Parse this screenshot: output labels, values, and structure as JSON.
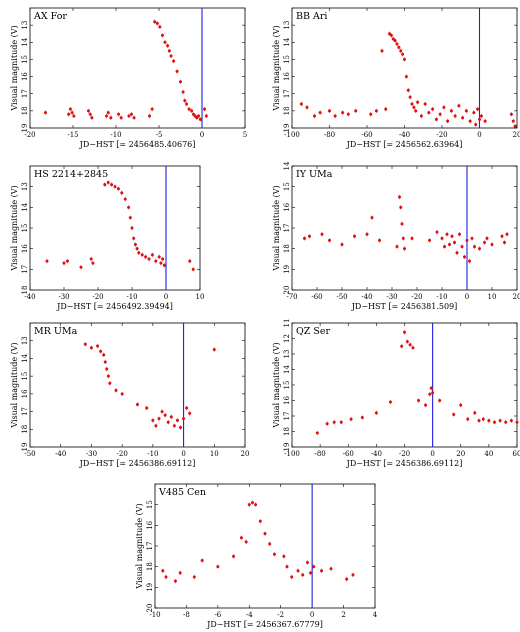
{
  "chart_data": [
    {
      "type": "scatter",
      "title": "AX For",
      "xlabel": "JD−HST [= 2456485.40676]",
      "ylabel": "Visual magnitude (V)",
      "xlim": [
        -20,
        5
      ],
      "ylim": [
        19,
        12
      ],
      "xticks": [
        -20,
        -15,
        -10,
        -5,
        0,
        5
      ],
      "yticks": [
        13,
        14,
        15,
        16,
        17,
        18,
        19
      ],
      "vline": 0,
      "points": [
        [
          -18.2,
          18.1
        ],
        [
          -15.5,
          18.2
        ],
        [
          -15.3,
          17.9
        ],
        [
          -15.1,
          18.1
        ],
        [
          -14.9,
          18.3
        ],
        [
          -13.2,
          18.0
        ],
        [
          -13.0,
          18.2
        ],
        [
          -12.8,
          18.4
        ],
        [
          -11.1,
          18.3
        ],
        [
          -10.9,
          18.1
        ],
        [
          -10.6,
          18.4
        ],
        [
          -9.7,
          18.2
        ],
        [
          -9.4,
          18.4
        ],
        [
          -8.5,
          18.3
        ],
        [
          -8.2,
          18.2
        ],
        [
          -7.9,
          18.4
        ],
        [
          -6.1,
          18.3
        ],
        [
          -5.8,
          17.9
        ],
        [
          -5.5,
          12.8
        ],
        [
          -5.2,
          12.9
        ],
        [
          -4.9,
          13.1
        ],
        [
          -4.6,
          13.6
        ],
        [
          -4.3,
          14.0
        ],
        [
          -4.0,
          14.2
        ],
        [
          -3.8,
          14.5
        ],
        [
          -3.6,
          14.8
        ],
        [
          -3.3,
          15.1
        ],
        [
          -2.9,
          15.7
        ],
        [
          -2.5,
          16.3
        ],
        [
          -2.2,
          16.9
        ],
        [
          -2.0,
          17.4
        ],
        [
          -1.8,
          17.6
        ],
        [
          -1.5,
          17.9
        ],
        [
          -1.2,
          18.0
        ],
        [
          -1.0,
          18.2
        ],
        [
          -0.8,
          18.3
        ],
        [
          -0.6,
          18.4
        ],
        [
          -0.4,
          18.3
        ],
        [
          -0.2,
          18.5
        ],
        [
          0.3,
          17.9
        ],
        [
          0.5,
          18.3
        ]
      ]
    },
    {
      "type": "scatter",
      "title": "BB Ari",
      "xlabel": "JD−HST [= 2456562.63964]",
      "ylabel": "Visual magnitude (V)",
      "xlim": [
        -100,
        20
      ],
      "ylim": [
        19,
        12
      ],
      "xticks": [
        -100,
        -80,
        -60,
        -40,
        -20,
        0,
        20
      ],
      "yticks": [
        13,
        14,
        15,
        16,
        17,
        18,
        19
      ],
      "vline": 0,
      "points": [
        [
          -95,
          17.6
        ],
        [
          -92,
          17.8
        ],
        [
          -88,
          18.3
        ],
        [
          -85,
          18.1
        ],
        [
          -80,
          18.0
        ],
        [
          -77,
          18.3
        ],
        [
          -73,
          18.1
        ],
        [
          -70,
          18.2
        ],
        [
          -66,
          18.0
        ],
        [
          -58,
          18.2
        ],
        [
          -55,
          18.0
        ],
        [
          -52,
          14.5
        ],
        [
          -50,
          17.9
        ],
        [
          -48,
          13.5
        ],
        [
          -47,
          13.6
        ],
        [
          -46,
          13.8
        ],
        [
          -45,
          13.9
        ],
        [
          -44,
          14.1
        ],
        [
          -43,
          14.3
        ],
        [
          -42,
          14.5
        ],
        [
          -41,
          14.7
        ],
        [
          -40,
          15.0
        ],
        [
          -39,
          16.0
        ],
        [
          -38,
          16.8
        ],
        [
          -37,
          17.2
        ],
        [
          -36,
          17.6
        ],
        [
          -35,
          17.8
        ],
        [
          -34,
          18.0
        ],
        [
          -33,
          17.5
        ],
        [
          -31,
          18.3
        ],
        [
          -29,
          17.6
        ],
        [
          -27,
          18.1
        ],
        [
          -25,
          17.9
        ],
        [
          -23,
          18.5
        ],
        [
          -21,
          18.2
        ],
        [
          -19,
          17.8
        ],
        [
          -17,
          18.6
        ],
        [
          -15,
          18.0
        ],
        [
          -13,
          18.3
        ],
        [
          -11,
          17.7
        ],
        [
          -9,
          18.4
        ],
        [
          -7,
          18.0
        ],
        [
          -5,
          18.6
        ],
        [
          -3,
          18.1
        ],
        [
          -2,
          18.8
        ],
        [
          -1,
          17.9
        ],
        [
          0,
          18.5
        ],
        [
          1,
          18.3
        ],
        [
          3,
          18.6
        ],
        [
          17,
          18.2
        ],
        [
          18,
          18.6
        ],
        [
          19,
          18.9
        ]
      ]
    },
    {
      "type": "scatter",
      "title": "HS 2214+2845",
      "xlabel": "JD−HST [= 2456492.39494]",
      "ylabel": "Visual magnitude (V)",
      "xlim": [
        -40,
        10
      ],
      "ylim": [
        18,
        12
      ],
      "xticks": [
        -40,
        -30,
        -20,
        -10,
        0,
        10
      ],
      "yticks": [
        13,
        14,
        15,
        16,
        17,
        18
      ],
      "vline": 0,
      "points": [
        [
          -35,
          16.6
        ],
        [
          -30,
          16.7
        ],
        [
          -29,
          16.6
        ],
        [
          -25,
          16.9
        ],
        [
          -22,
          16.5
        ],
        [
          -21.5,
          16.7
        ],
        [
          -18,
          12.9
        ],
        [
          -17,
          12.8
        ],
        [
          -16,
          12.9
        ],
        [
          -15,
          13.0
        ],
        [
          -14,
          13.1
        ],
        [
          -13,
          13.3
        ],
        [
          -12,
          13.6
        ],
        [
          -11,
          14.0
        ],
        [
          -10.5,
          14.5
        ],
        [
          -10,
          15.0
        ],
        [
          -9.5,
          15.5
        ],
        [
          -9,
          15.8
        ],
        [
          -8.5,
          16.0
        ],
        [
          -8,
          16.2
        ],
        [
          -7,
          16.3
        ],
        [
          -6,
          16.4
        ],
        [
          -5,
          16.5
        ],
        [
          -4,
          16.3
        ],
        [
          -3,
          16.6
        ],
        [
          -2,
          16.4
        ],
        [
          -1.5,
          16.7
        ],
        [
          -1,
          16.5
        ],
        [
          -0.5,
          16.8
        ],
        [
          7,
          16.6
        ],
        [
          8,
          17.0
        ]
      ]
    },
    {
      "type": "scatter",
      "title": "IY UMa",
      "xlabel": "JD−HST [= 2456381.509]",
      "ylabel": "Visual magnitude (V)",
      "xlim": [
        -70,
        20
      ],
      "ylim": [
        20,
        14
      ],
      "xticks": [
        -70,
        -60,
        -50,
        -40,
        -30,
        -20,
        -10,
        0,
        10,
        20
      ],
      "yticks": [
        14,
        15,
        16,
        17,
        18,
        19,
        20
      ],
      "vline": 0,
      "points": [
        [
          -65,
          17.5
        ],
        [
          -63,
          17.4
        ],
        [
          -58,
          17.3
        ],
        [
          -55,
          17.6
        ],
        [
          -50,
          17.8
        ],
        [
          -45,
          17.4
        ],
        [
          -40,
          17.3
        ],
        [
          -38,
          16.5
        ],
        [
          -35,
          17.6
        ],
        [
          -28,
          17.9
        ],
        [
          -27,
          15.5
        ],
        [
          -26.5,
          16.0
        ],
        [
          -26,
          16.8
        ],
        [
          -25.5,
          17.5
        ],
        [
          -25,
          18.0
        ],
        [
          -22,
          17.5
        ],
        [
          -15,
          17.6
        ],
        [
          -12,
          17.2
        ],
        [
          -10,
          17.5
        ],
        [
          -9,
          17.9
        ],
        [
          -8,
          17.3
        ],
        [
          -7,
          17.8
        ],
        [
          -6,
          17.4
        ],
        [
          -5,
          17.7
        ],
        [
          -4,
          18.2
        ],
        [
          -3,
          17.3
        ],
        [
          -2,
          17.9
        ],
        [
          -1,
          18.4
        ],
        [
          0,
          17.6
        ],
        [
          1,
          18.6
        ],
        [
          2,
          17.5
        ],
        [
          3,
          17.9
        ],
        [
          5,
          18.0
        ],
        [
          7,
          17.7
        ],
        [
          8,
          17.5
        ],
        [
          10,
          17.8
        ],
        [
          14,
          17.4
        ],
        [
          15,
          17.7
        ],
        [
          16,
          17.3
        ]
      ]
    },
    {
      "type": "scatter",
      "title": "MR UMa",
      "xlabel": "JD−HST [= 2456386.69112]",
      "ylabel": "Visual magnitude (V)",
      "xlim": [
        -50,
        20
      ],
      "ylim": [
        19,
        12
      ],
      "xticks": [
        -50,
        -40,
        -30,
        -20,
        -10,
        0,
        10,
        20
      ],
      "yticks": [
        13,
        14,
        15,
        16,
        17,
        18,
        19
      ],
      "vline": 0,
      "points": [
        [
          -32,
          13.2
        ],
        [
          -30,
          13.4
        ],
        [
          -28,
          13.3
        ],
        [
          -27,
          13.6
        ],
        [
          -26,
          13.8
        ],
        [
          -25.5,
          14.2
        ],
        [
          -25,
          14.6
        ],
        [
          -24.5,
          15.0
        ],
        [
          -24,
          15.4
        ],
        [
          -22,
          15.8
        ],
        [
          -20,
          16.0
        ],
        [
          -15,
          16.6
        ],
        [
          -12,
          16.8
        ],
        [
          -10,
          17.5
        ],
        [
          -9,
          17.8
        ],
        [
          -8,
          17.4
        ],
        [
          -7,
          17.0
        ],
        [
          -6,
          17.2
        ],
        [
          -5,
          17.6
        ],
        [
          -4,
          17.3
        ],
        [
          -3,
          17.8
        ],
        [
          -2,
          17.5
        ],
        [
          -1,
          17.9
        ],
        [
          0,
          17.4
        ],
        [
          1,
          16.8
        ],
        [
          2,
          17.1
        ],
        [
          10,
          13.5
        ]
      ]
    },
    {
      "type": "scatter",
      "title": "QZ Ser",
      "xlabel": "JD−HST [= 2456386.69112]",
      "ylabel": "Visual magnitude (V)",
      "xlim": [
        -100,
        60
      ],
      "ylim": [
        19,
        11
      ],
      "xticks": [
        -100,
        -80,
        -60,
        -40,
        -20,
        0,
        20,
        40,
        60
      ],
      "yticks": [
        11,
        12,
        13,
        14,
        15,
        16,
        17,
        18,
        19
      ],
      "vline": 0,
      "points": [
        [
          -82,
          18.1
        ],
        [
          -75,
          17.5
        ],
        [
          -70,
          17.4
        ],
        [
          -65,
          17.4
        ],
        [
          -58,
          17.2
        ],
        [
          -50,
          17.1
        ],
        [
          -40,
          16.8
        ],
        [
          -30,
          16.1
        ],
        [
          -22,
          12.5
        ],
        [
          -20,
          11.6
        ],
        [
          -18,
          12.2
        ],
        [
          -16,
          12.4
        ],
        [
          -14,
          12.6
        ],
        [
          -10,
          16.0
        ],
        [
          -5,
          16.3
        ],
        [
          -2,
          15.6
        ],
        [
          -1,
          15.2
        ],
        [
          0,
          15.5
        ],
        [
          5,
          16.0
        ],
        [
          15,
          16.9
        ],
        [
          20,
          16.3
        ],
        [
          25,
          17.2
        ],
        [
          30,
          16.8
        ],
        [
          33,
          17.3
        ],
        [
          36,
          17.2
        ],
        [
          40,
          17.3
        ],
        [
          44,
          17.4
        ],
        [
          48,
          17.3
        ],
        [
          52,
          17.4
        ],
        [
          56,
          17.3
        ],
        [
          60,
          17.4
        ]
      ]
    },
    {
      "type": "scatter",
      "title": "V485 Cen",
      "xlabel": "JD−HST [= 2456367.67779]",
      "ylabel": "Visual magnitude (V)",
      "xlim": [
        -10,
        4
      ],
      "ylim": [
        20,
        14
      ],
      "xticks": [
        -10,
        -8,
        -6,
        -4,
        -2,
        0,
        2,
        4
      ],
      "yticks": [
        15,
        16,
        17,
        18,
        19,
        20
      ],
      "vline": 0,
      "points": [
        [
          -9.5,
          18.2
        ],
        [
          -9.3,
          18.5
        ],
        [
          -8.7,
          18.7
        ],
        [
          -8.4,
          18.3
        ],
        [
          -7.5,
          18.5
        ],
        [
          -7.0,
          17.7
        ],
        [
          -6.0,
          18.0
        ],
        [
          -5.0,
          17.5
        ],
        [
          -4.5,
          16.6
        ],
        [
          -4.2,
          16.8
        ],
        [
          -4.0,
          15.0
        ],
        [
          -3.8,
          14.9
        ],
        [
          -3.6,
          15.0
        ],
        [
          -3.3,
          15.8
        ],
        [
          -3.0,
          16.4
        ],
        [
          -2.7,
          16.9
        ],
        [
          -2.4,
          17.4
        ],
        [
          -1.8,
          17.5
        ],
        [
          -1.6,
          18.0
        ],
        [
          -1.3,
          18.5
        ],
        [
          -0.9,
          18.2
        ],
        [
          -0.6,
          18.4
        ],
        [
          -0.3,
          17.8
        ],
        [
          -0.1,
          18.3
        ],
        [
          0.1,
          18.0
        ],
        [
          0.6,
          18.2
        ],
        [
          1.2,
          18.1
        ],
        [
          2.2,
          18.6
        ],
        [
          2.6,
          18.4
        ]
      ]
    }
  ]
}
